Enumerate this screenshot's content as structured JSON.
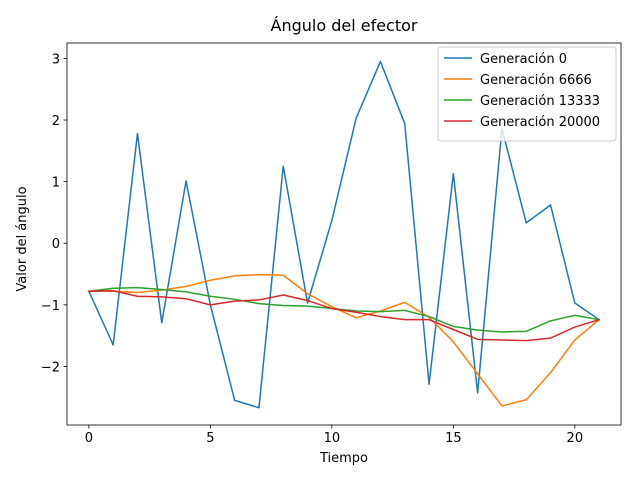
{
  "chart_data": {
    "type": "line",
    "title": "Ángulo del efector",
    "xlabel": "Tiempo",
    "ylabel": "Valor del ángulo",
    "xlim": [
      -0.9,
      21.9
    ],
    "ylim": [
      -2.95,
      3.25
    ],
    "xticks": [
      0,
      5,
      10,
      15,
      20
    ],
    "yticks": [
      -2,
      -1,
      0,
      1,
      2,
      3
    ],
    "ytick_labels": [
      "−2",
      "−1",
      "0",
      "1",
      "2",
      "3"
    ],
    "grid": false,
    "legend_position": "top-right",
    "x": [
      0,
      1,
      2,
      3,
      4,
      5,
      6,
      7,
      8,
      9,
      10,
      11,
      12,
      13,
      14,
      15,
      16,
      17,
      18,
      19,
      20,
      21
    ],
    "series": [
      {
        "name": "Generación 0",
        "color": "#1f77b4",
        "values": [
          -0.78,
          -1.65,
          1.78,
          -1.29,
          1.01,
          -1.0,
          -2.55,
          -2.67,
          1.25,
          -0.97,
          0.37,
          2.03,
          2.95,
          1.94,
          -2.29,
          1.13,
          -2.43,
          1.86,
          0.33,
          0.62,
          -0.97,
          -1.24
        ]
      },
      {
        "name": "Generación 6666",
        "color": "#ff7f0e",
        "values": [
          -0.78,
          -0.78,
          -0.8,
          -0.76,
          -0.7,
          -0.6,
          -0.53,
          -0.51,
          -0.52,
          -0.82,
          -1.03,
          -1.21,
          -1.1,
          -0.96,
          -1.2,
          -1.6,
          -2.12,
          -2.64,
          -2.54,
          -2.1,
          -1.57,
          -1.24
        ]
      },
      {
        "name": "Generación 13333",
        "color": "#2ca02c",
        "values": [
          -0.78,
          -0.73,
          -0.72,
          -0.75,
          -0.79,
          -0.86,
          -0.91,
          -0.98,
          -1.01,
          -1.02,
          -1.06,
          -1.1,
          -1.11,
          -1.09,
          -1.19,
          -1.35,
          -1.41,
          -1.44,
          -1.43,
          -1.26,
          -1.17,
          -1.24
        ]
      },
      {
        "name": "Generación 20000",
        "color": "#d62728",
        "values": [
          -0.78,
          -0.77,
          -0.86,
          -0.87,
          -0.9,
          -1.0,
          -0.94,
          -0.92,
          -0.84,
          -0.93,
          -1.06,
          -1.12,
          -1.19,
          -1.24,
          -1.24,
          -1.4,
          -1.56,
          -1.57,
          -1.58,
          -1.54,
          -1.36,
          -1.24
        ]
      }
    ]
  }
}
